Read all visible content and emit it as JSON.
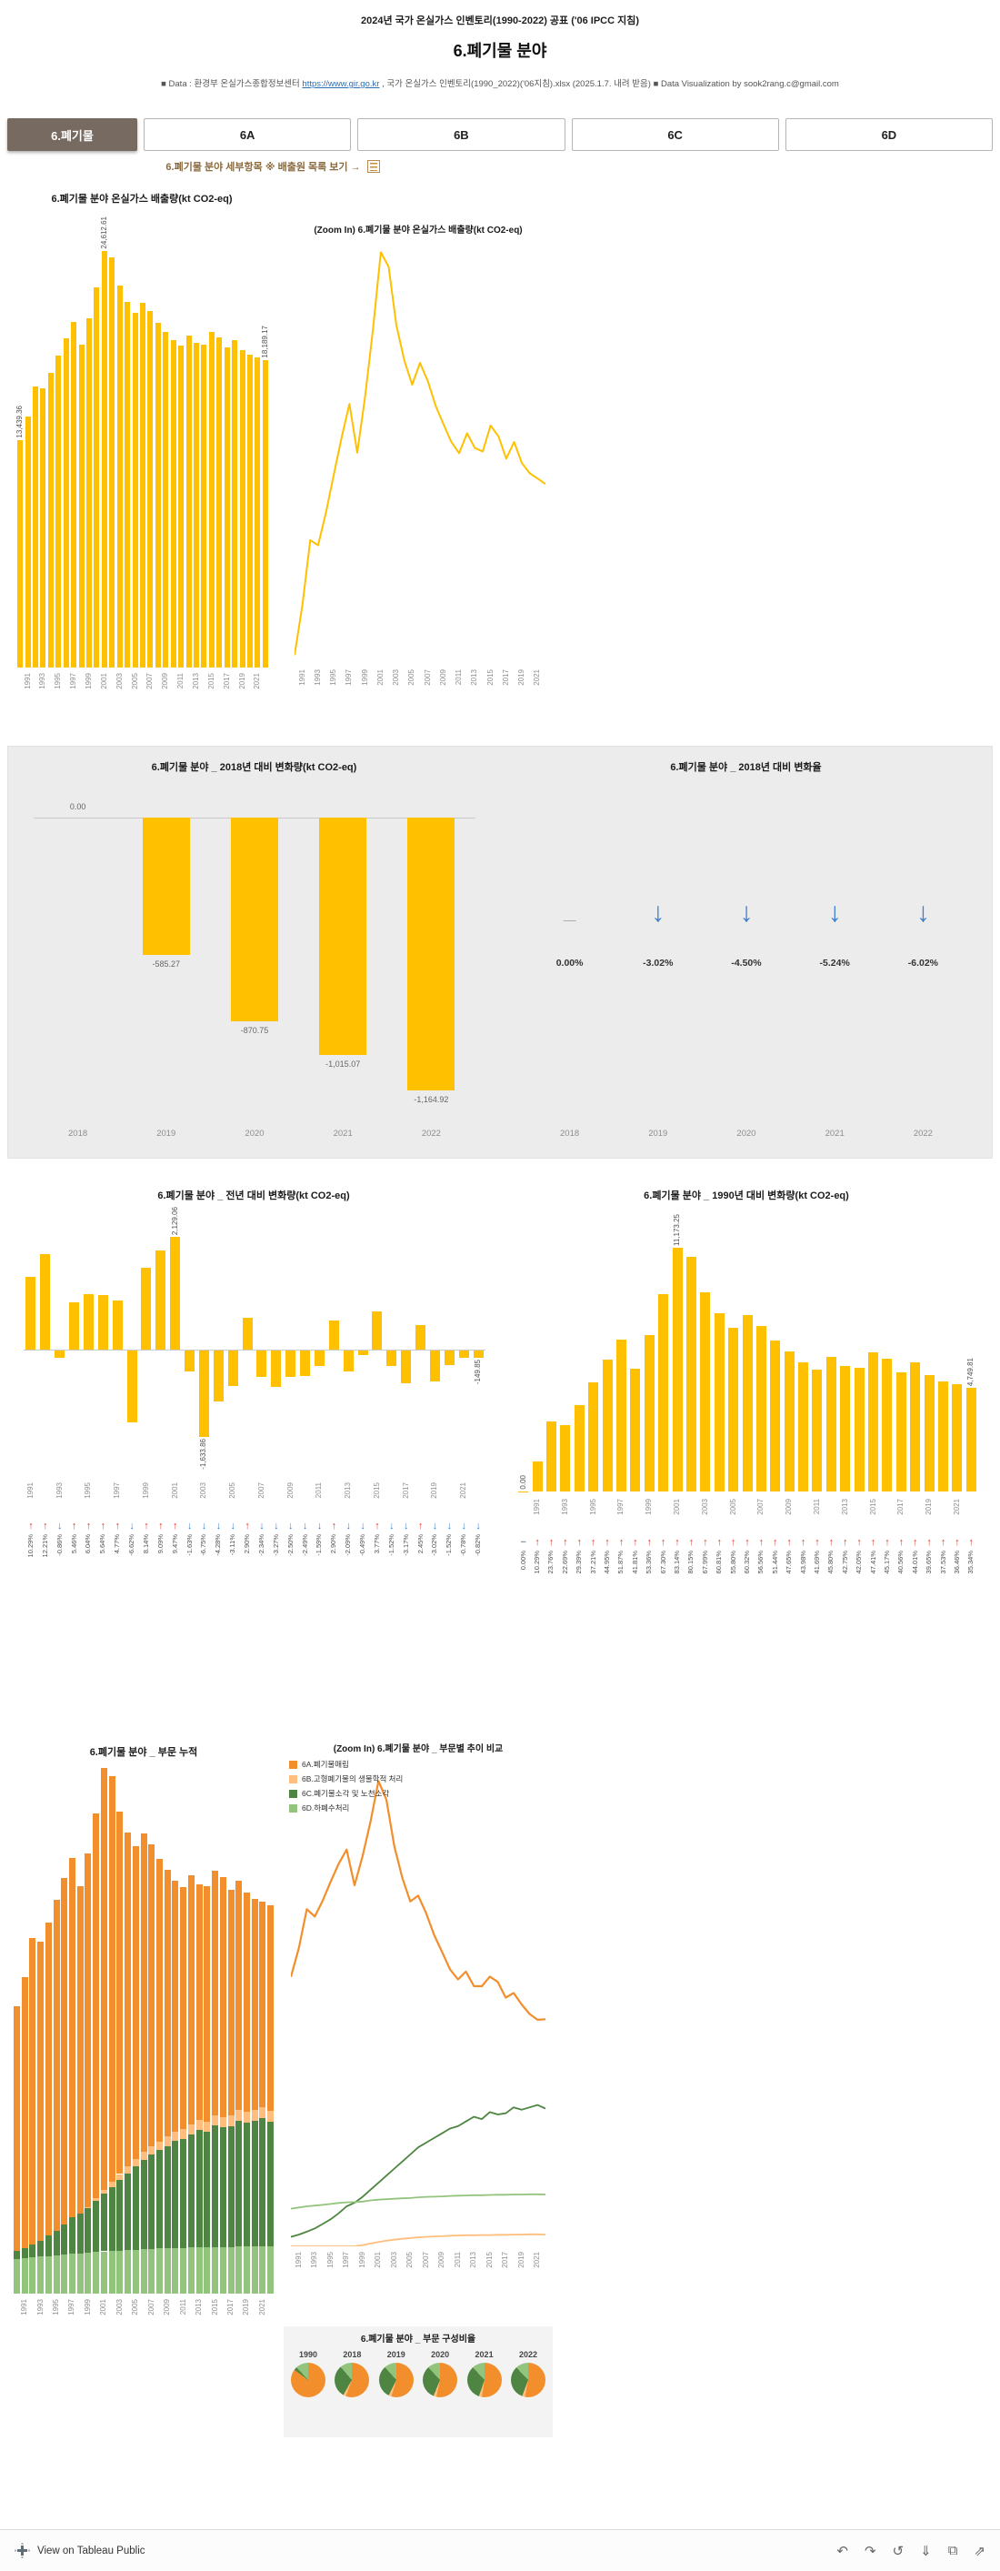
{
  "header": {
    "top_title": "2024년 국가 온실가스 인벤토리(1990-2022) 공표 ('06 IPCC 지침)",
    "main_title": "6.폐기물 분야",
    "data_prefix": "■ Data : 환경부 온실가스종합정보센터 ",
    "source_link": "https://www.gir.go.kr",
    "data_suffix": " , 국가 온실가스 인벤토리(1990_2022)('06지침).xlsx (2025.1.7. 내려 받음)",
    "viz_credit": "  ■ Data Visualization by sook2rang.c@gmail.com"
  },
  "tabs": [
    {
      "label": "6.폐기물",
      "active": true
    },
    {
      "label": "6A",
      "active": false
    },
    {
      "label": "6B",
      "active": false
    },
    {
      "label": "6C",
      "active": false
    },
    {
      "label": "6D",
      "active": false
    }
  ],
  "subnav": {
    "text": "6.폐기물 분야 세부항목  ※ 배출원 목록 보기 →"
  },
  "colors": {
    "gold": "#FFC000",
    "orange": "#F28E2B",
    "peach": "#FFBE7D",
    "green_dark": "#4E8542",
    "green_light": "#93C47D",
    "arrow_up": "#E03C31",
    "arrow_down": "#3D7ECB",
    "tab_active_bg": "#776A60",
    "section_gray": "#ECECEC"
  },
  "years": [
    1990,
    1991,
    1992,
    1993,
    1994,
    1995,
    1996,
    1997,
    1998,
    1999,
    2000,
    2001,
    2002,
    2003,
    2004,
    2005,
    2006,
    2007,
    2008,
    2009,
    2010,
    2011,
    2012,
    2013,
    2014,
    2015,
    2016,
    2017,
    2018,
    2019,
    2020,
    2021,
    2022
  ],
  "chart_data": [
    {
      "id": "total_bar",
      "type": "bar",
      "title": "6.폐기물 분야 온실가스 배출량(kt CO2-eq)",
      "xlabel": "",
      "ylabel": "kt CO2-eq",
      "x_range": "1990-2022",
      "values": [
        13439.36,
        14822.27,
        16632.07,
        16489.03,
        17389.5,
        18440.0,
        19480.0,
        20410.0,
        19058.0,
        20610.0,
        22483.55,
        24612.61,
        24210.4,
        22576.54,
        21611.3,
        20939.1,
        21546.3,
        21041.2,
        20352.6,
        19843.0,
        19349.4,
        19041.7,
        19594.0,
        19184.6,
        19090.6,
        19810.3,
        19509.2,
        18891.0,
        19354.09,
        18768.82,
        18483.34,
        18339.02,
        18189.17
      ],
      "labeled_points": {
        "1990": "13,439.36",
        "2001": "24,612.61",
        "2022": "18,189.17"
      }
    },
    {
      "id": "total_line",
      "type": "line",
      "title": "(Zoom In) 6.폐기물 분야 온실가스 배출량(kt CO2-eq)",
      "x_range": "1990-2022",
      "ylim": [
        13200,
        24800
      ],
      "values": [
        13439.36,
        14822.27,
        16632.07,
        16489.03,
        17389.5,
        18440.0,
        19480.0,
        20410.0,
        19058.0,
        20610.0,
        22483.55,
        24612.61,
        24210.4,
        22576.54,
        21611.3,
        20939.1,
        21546.3,
        21041.2,
        20352.6,
        19843.0,
        19349.4,
        19041.7,
        19594.0,
        19184.6,
        19090.6,
        19810.3,
        19509.2,
        18891.0,
        19354.09,
        18768.82,
        18483.34,
        18339.02,
        18189.17
      ]
    },
    {
      "id": "delta_vs_2018",
      "type": "bar",
      "title": "6.폐기물 분야 _ 2018년 대비 변화량(kt CO2-eq)",
      "categories": [
        2018,
        2019,
        2020,
        2021,
        2022
      ],
      "values": [
        0,
        -585.27,
        -870.75,
        -1015.07,
        -1164.92
      ],
      "labels": [
        "0.00",
        "-585.27",
        "-870.75",
        "-1,015.07",
        "-1,164.92"
      ]
    },
    {
      "id": "pct_vs_2018",
      "type": "table",
      "title": "6.폐기물 분야 _ 2018년 대비 변화율",
      "categories": [
        2018,
        2019,
        2020,
        2021,
        2022
      ],
      "values": [
        "0.00%",
        "-3.02%",
        "-4.50%",
        "-5.24%",
        "-6.02%"
      ],
      "directions": [
        "flat",
        "down",
        "down",
        "down",
        "down"
      ]
    },
    {
      "id": "yoy_delta",
      "type": "bar",
      "title": "6.폐기물 분야 _ 전년 대비 변화량(kt CO2-eq)",
      "x_range": "1991-2022",
      "values": [
        1382.91,
        1809.8,
        -143.04,
        900.47,
        1050.5,
        1040.0,
        930.0,
        -1352.0,
        1552.0,
        1873.55,
        2129.06,
        -402.21,
        -1633.86,
        -965.24,
        -672.2,
        607.2,
        -505.1,
        -688.6,
        -509.6,
        -493.6,
        -307.7,
        552.3,
        -409.4,
        -94.0,
        719.7,
        -301.1,
        -618.2,
        463.09,
        -585.27,
        -285.48,
        -144.32,
        -149.85
      ],
      "pct": [
        "10.29%",
        "12.21%",
        "-0.86%",
        "5.46%",
        "6.04%",
        "5.64%",
        "4.77%",
        "-6.62%",
        "8.14%",
        "9.09%",
        "9.47%",
        "-1.63%",
        "-6.75%",
        "-4.28%",
        "-3.11%",
        "2.90%",
        "-2.34%",
        "-3.27%",
        "-2.50%",
        "-2.49%",
        "-1.59%",
        "2.90%",
        "-2.09%",
        "-0.49%",
        "3.77%",
        "-1.52%",
        "-3.17%",
        "2.45%",
        "-3.02%",
        "-1.52%",
        "-0.78%",
        "-0.82%"
      ],
      "labeled_points": {
        "2001": "2,129.06",
        "2003": "-1,633.86",
        "2022": "-149.85"
      }
    },
    {
      "id": "delta_vs_1990",
      "type": "bar",
      "title": "6.폐기물 분야 _ 1990년 대비 변화량(kt CO2-eq)",
      "x_range": "1990-2022",
      "values": [
        0.0,
        1382.91,
        3192.71,
        3049.67,
        3950.14,
        5000.64,
        6040.64,
        6970.64,
        5618.64,
        7170.64,
        9044.19,
        11173.25,
        10771.04,
        9137.18,
        8171.94,
        7499.74,
        8106.94,
        7601.84,
        6913.24,
        6403.64,
        5910.04,
        5602.34,
        6154.64,
        5745.24,
        5651.24,
        6370.94,
        6069.84,
        5451.64,
        5914.73,
        5329.46,
        5043.98,
        4899.66,
        4749.81
      ],
      "pct": [
        "0.00%",
        "10.29%",
        "23.76%",
        "22.69%",
        "29.39%",
        "37.21%",
        "44.95%",
        "51.87%",
        "41.81%",
        "53.36%",
        "67.30%",
        "83.14%",
        "80.15%",
        "67.99%",
        "60.81%",
        "55.80%",
        "60.32%",
        "56.56%",
        "51.44%",
        "47.65%",
        "43.98%",
        "41.69%",
        "45.80%",
        "42.75%",
        "42.05%",
        "47.41%",
        "45.17%",
        "40.56%",
        "44.01%",
        "39.65%",
        "37.53%",
        "36.46%",
        "35.34%"
      ],
      "labeled_points": {
        "1990": "0.00",
        "2001": "11,173.25",
        "2022": "4,749.81"
      }
    },
    {
      "id": "sector_stacked",
      "type": "bar",
      "stacked": true,
      "title": "6.폐기물 분야 _ 부문 누적",
      "x_range": "1990-2022",
      "series": [
        {
          "key": "6A",
          "name": "6A.폐기물매립",
          "color": "#F28E2B",
          "values": [
            11439.36,
            12672.27,
            14312.07,
            13999.03,
            14679.5,
            15490.0,
            16240.0,
            16840.0,
            15328.0,
            16560.0,
            18013.55,
            19752.61,
            18970.4,
            16976.54,
            15651.3,
            14639.1,
            14886.3,
            14141.2,
            13222.6,
            12493.0,
            11759.4,
            11331.7,
            11664.0,
            11044.6,
            11040.6,
            11450.3,
            11229.2,
            10561.0,
            10754.09,
            10268.82,
            9863.34,
            9619.02,
            9639.17
          ]
        },
        {
          "key": "6B",
          "name": "6B.고형폐기물의 생물학적 처리",
          "color": "#FFBE7D",
          "values": [
            0,
            0,
            0,
            0,
            0,
            0,
            0,
            0,
            0,
            50,
            120,
            180,
            240,
            280,
            320,
            350,
            380,
            400,
            420,
            430,
            450,
            460,
            470,
            470,
            480,
            480,
            490,
            490,
            500,
            500,
            510,
            510,
            500
          ]
        },
        {
          "key": "6C",
          "name": "6C.폐기물소각 및 노천소각",
          "color": "#4E8542",
          "values": [
            400,
            500,
            620,
            760,
            950,
            1150,
            1400,
            1700,
            1850,
            2100,
            2400,
            2700,
            3000,
            3300,
            3600,
            3900,
            4200,
            4400,
            4600,
            4800,
            5000,
            5100,
            5300,
            5500,
            5400,
            5700,
            5600,
            5650,
            5900,
            5800,
            5900,
            6000,
            5850
          ]
        },
        {
          "key": "6D",
          "name": "6D.하폐수처리",
          "color": "#93C47D",
          "values": [
            1600,
            1650,
            1700,
            1730,
            1760,
            1800,
            1840,
            1870,
            1880,
            1900,
            1950,
            1980,
            2000,
            2020,
            2040,
            2050,
            2080,
            2100,
            2110,
            2120,
            2140,
            2150,
            2160,
            2170,
            2170,
            2180,
            2190,
            2190,
            2200,
            2200,
            2210,
            2210,
            2200
          ]
        }
      ]
    },
    {
      "id": "sector_lines",
      "type": "line",
      "title": "(Zoom In) 6.폐기물 분야 _ 부문별 추이 비교",
      "x_range": "1990-2022",
      "ylim": [
        0,
        20000
      ],
      "note": "series values shared with sector_stacked"
    },
    {
      "id": "composition_pies",
      "type": "pie",
      "title": "6.폐기물 분야 _ 부문 구성비율",
      "years": [
        1990,
        2018,
        2019,
        2020,
        2021,
        2022
      ],
      "slice_order": [
        "6A.폐기물매립",
        "6B.고형폐기물의 생물학적 처리",
        "6C.폐기물소각 및 노천소각",
        "6D.하폐수처리"
      ],
      "shares": [
        [
          85.1,
          0.0,
          3.0,
          11.9
        ],
        [
          55.6,
          2.6,
          30.5,
          11.3
        ],
        [
          54.7,
          2.7,
          30.9,
          11.7
        ],
        [
          53.4,
          2.8,
          31.9,
          11.9
        ],
        [
          52.5,
          2.8,
          32.7,
          12.0
        ],
        [
          53.0,
          2.7,
          32.2,
          12.1
        ]
      ]
    }
  ],
  "footer": {
    "brand": "View on Tableau Public",
    "icons": [
      {
        "name": "undo-icon",
        "glyph": "↶"
      },
      {
        "name": "redo-icon",
        "glyph": "↷"
      },
      {
        "name": "replay-icon",
        "glyph": "↺"
      },
      {
        "name": "download-icon",
        "glyph": "⇓"
      },
      {
        "name": "fullscreen-icon",
        "glyph": "⧉"
      },
      {
        "name": "share-icon",
        "glyph": "⇗"
      }
    ]
  }
}
